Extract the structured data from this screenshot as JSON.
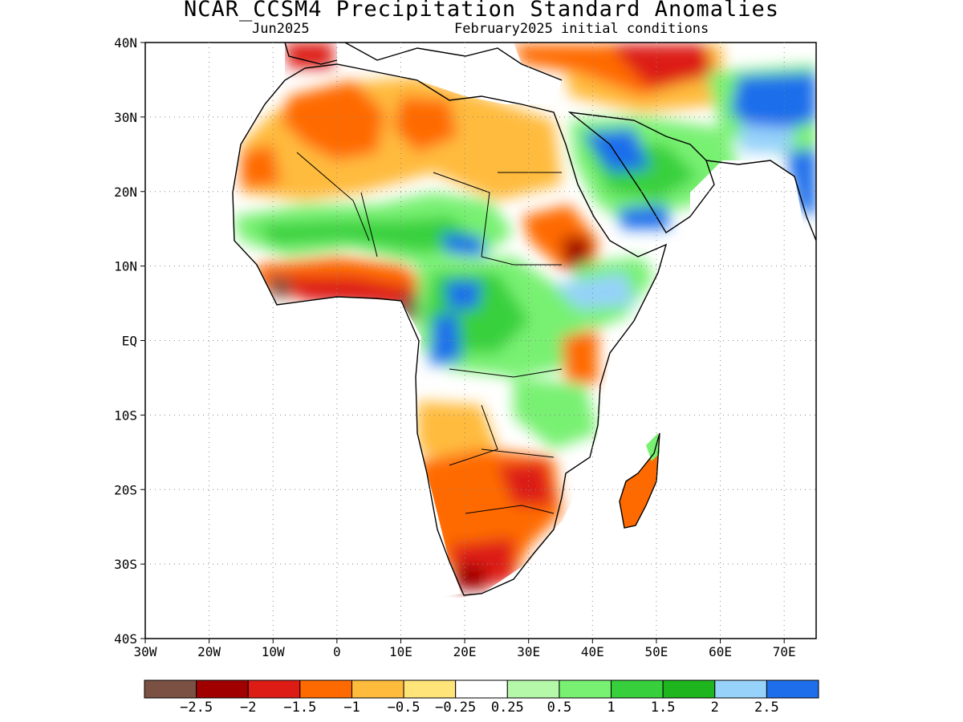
{
  "title": "NCAR_CCSM4 Precipitation Standard Anomalies",
  "subtitle_left": "Jun2025",
  "subtitle_right": "February2025 initial conditions",
  "lat_labels": [
    "40N",
    "30N",
    "20N",
    "10N",
    "EQ",
    "10S",
    "20S",
    "30S",
    "40S"
  ],
  "lon_labels": [
    "30W",
    "20W",
    "10W",
    "0",
    "10E",
    "20E",
    "30E",
    "40E",
    "50E",
    "60E",
    "70E"
  ],
  "lat_values": [
    40,
    30,
    20,
    10,
    0,
    -10,
    -20,
    -30,
    -40
  ],
  "lon_values": [
    -30,
    -20,
    -10,
    0,
    10,
    20,
    30,
    40,
    50,
    60,
    70
  ],
  "colorbar": {
    "colors": [
      "#7a5142",
      "#a00000",
      "#dd1c16",
      "#ff6a00",
      "#ffbb3c",
      "#ffe479",
      "#ffffff",
      "#b5f8aa",
      "#78f172",
      "#37d03c",
      "#1eb51e",
      "#96d2fa",
      "#1e6eeb"
    ],
    "labels": [
      "-2.5",
      "-2",
      "-1.5",
      "-1",
      "-0.5",
      "-0.25",
      "0.25",
      "0.5",
      "1",
      "1.5",
      "2",
      "2.5"
    ]
  }
}
